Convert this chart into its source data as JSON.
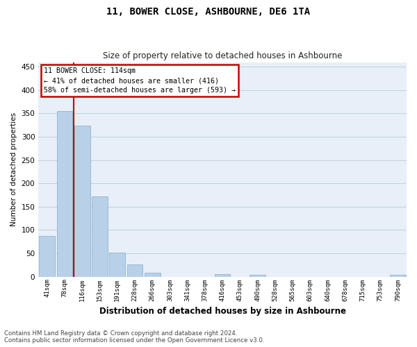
{
  "title": "11, BOWER CLOSE, ASHBOURNE, DE6 1TA",
  "subtitle": "Size of property relative to detached houses in Ashbourne",
  "xlabel": "Distribution of detached houses by size in Ashbourne",
  "ylabel": "Number of detached properties",
  "footer_line1": "Contains HM Land Registry data © Crown copyright and database right 2024.",
  "footer_line2": "Contains public sector information licensed under the Open Government Licence v3.0.",
  "categories": [
    "41sqm",
    "78sqm",
    "116sqm",
    "153sqm",
    "191sqm",
    "228sqm",
    "266sqm",
    "303sqm",
    "341sqm",
    "378sqm",
    "416sqm",
    "453sqm",
    "490sqm",
    "528sqm",
    "565sqm",
    "603sqm",
    "640sqm",
    "678sqm",
    "715sqm",
    "753sqm",
    "790sqm"
  ],
  "values": [
    88,
    355,
    324,
    172,
    52,
    26,
    8,
    0,
    0,
    0,
    5,
    0,
    4,
    0,
    0,
    0,
    0,
    0,
    0,
    0,
    4
  ],
  "bar_color": "#b8d0e8",
  "bar_edge_color": "#90b4d0",
  "plot_bg_color": "#e8eff8",
  "fig_bg_color": "#ffffff",
  "grid_color": "#c0d0e0",
  "annotation_text": "11 BOWER CLOSE: 114sqm\n← 41% of detached houses are smaller (416)\n58% of semi-detached houses are larger (593) →",
  "annotation_box_facecolor": "#ffffff",
  "annotation_box_edgecolor": "#cc0000",
  "red_line_color": "#cc0000",
  "red_line_x": 1.5,
  "ylim": [
    0,
    460
  ],
  "yticks": [
    0,
    50,
    100,
    150,
    200,
    250,
    300,
    350,
    400,
    450
  ]
}
